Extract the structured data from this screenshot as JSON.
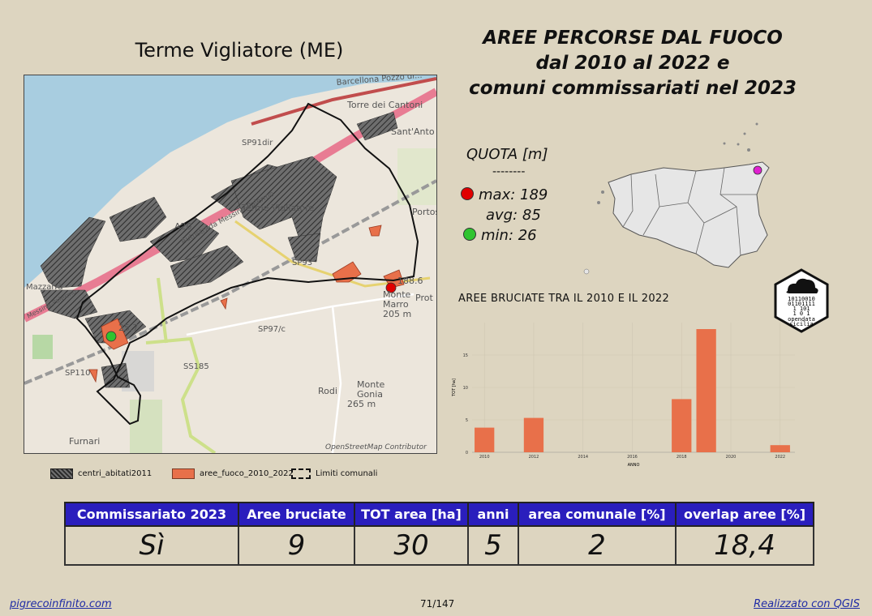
{
  "municipality_title": "Terme Vigliatore (ME)",
  "main_title": [
    "AREE PERCORSE DAL FUOCO",
    "dal 2010 al 2022 e",
    "comuni commissariati nel 2023"
  ],
  "map": {
    "attribution": "OpenStreetMap Contributor",
    "labels": {
      "barcellona": "Barcellona Pozzo di...",
      "torre": "Torre dei Cantoni",
      "santanto": "Sant'Anto",
      "sp91": "SP91dir",
      "terme": "Terme Vigliatore",
      "autostrada": "Autostrada Messina-Palermo",
      "a20": "A20",
      "sp93": "SP93",
      "portos": "Portos",
      "monte_marro": "Monte",
      "monte_marro2": "Marro",
      "monte_marro_q": "205 m",
      "proto": "Prot",
      "sp97": "SP97/c",
      "ss185": "SS185",
      "monte_gonia": "Monte",
      "monte_gonia2": "Gonia",
      "monte_gonia_q": "265 m",
      "rodi": "Rodi",
      "sp110": "SP110",
      "furnari": "Furnari",
      "mazzarra": "Mazzarrà",
      "messina_palermo": "Messina-Palermo"
    },
    "max_label": "188.6",
    "min_label": "25.7"
  },
  "legend": {
    "centri": "centri_abitati2011",
    "fuoco": "aree_fuoco_2010_2022",
    "limiti": "Limiti comunali"
  },
  "quota": {
    "title": "QUOTA [m]",
    "separator": "--------",
    "max": "max: 189",
    "avg": "avg: 85",
    "min": "min: 26"
  },
  "colors": {
    "fire": "#e8704a",
    "table_header": "#2a1ebd",
    "max_dot": "#e00000",
    "min_dot": "#2fc42f",
    "location_dot": "#e020d0",
    "sea": "#a8cde0"
  },
  "inset_map": {
    "icon": "sicily-map-icon"
  },
  "logo": {
    "lines": [
      "10110010",
      "01101111",
      "1  101",
      "1 0 1"
    ],
    "text1": "opendata",
    "text2": "sicilia"
  },
  "chart_title": "AREE BRUCIATE TRA IL 2010 E IL 2022",
  "chart_data": {
    "type": "bar",
    "title": "AREE BRUCIATE TRA IL 2010 E IL 2022",
    "xlabel": "ANNO",
    "ylabel": "TOT [ha]",
    "x": [
      2010,
      2012,
      2018,
      2019,
      2022
    ],
    "values": [
      3.8,
      5.3,
      8.2,
      19.0,
      1.1
    ],
    "xticks": [
      2010,
      2012,
      2014,
      2016,
      2018,
      2020,
      2022
    ],
    "yticks": [
      0,
      5,
      10,
      15
    ],
    "xlim": [
      2009.5,
      2022.6
    ],
    "ylim": [
      0,
      20
    ],
    "grid": true,
    "bar_color": "#e8704a"
  },
  "table": {
    "headers": [
      "Commissariato 2023",
      "Aree bruciate",
      "TOT area [ha]",
      "anni",
      "area comunale [%]",
      "overlap aree [%]"
    ],
    "values": [
      "Sì",
      "9",
      "30",
      "5",
      "2",
      "18,4"
    ]
  },
  "footer": {
    "left": "pigrecoinfinito.com",
    "center": "71/147",
    "right": "Realizzato con QGIS"
  }
}
